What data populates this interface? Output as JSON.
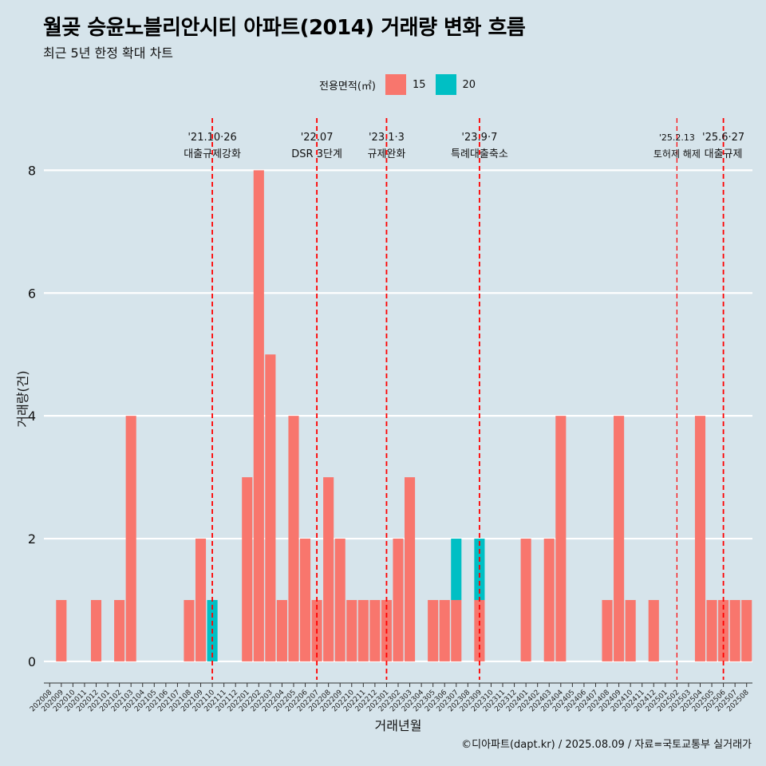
{
  "title": "월곶 승윤노블리안시티 아파트(2014) 거래량 변화 흐름",
  "subtitle": "최근 5년 한정 확대 차트",
  "caption": "©디아파트(dapt.kr) / 2025.08.09 / 자료=국토교통부 실거래가",
  "legend": {
    "title": "전용면적(㎡)",
    "items": [
      {
        "label": "15",
        "color": "#f8766d"
      },
      {
        "label": "20",
        "color": "#00bfc4"
      }
    ]
  },
  "chart_data": {
    "type": "bar",
    "xlabel": "거래년월",
    "ylabel": "거래량(건)",
    "ylim": [
      -0.3,
      8.85
    ],
    "yticks": [
      0,
      2,
      4,
      6,
      8
    ],
    "grid": "horizontal",
    "categories": [
      "202008",
      "202009",
      "202010",
      "202011",
      "202012",
      "202101",
      "202102",
      "202103",
      "202104",
      "202105",
      "202106",
      "202107",
      "202108",
      "202109",
      "202110",
      "202111",
      "202112",
      "202201",
      "202202",
      "202203",
      "202204",
      "202205",
      "202206",
      "202207",
      "202208",
      "202209",
      "202210",
      "202211",
      "202212",
      "202301",
      "202302",
      "202303",
      "202304",
      "202305",
      "202306",
      "202307",
      "202308",
      "202309",
      "202310",
      "202311",
      "202312",
      "202401",
      "202402",
      "202403",
      "202404",
      "202405",
      "202406",
      "202407",
      "202408",
      "202409",
      "202410",
      "202411",
      "202412",
      "202501",
      "202502",
      "202503",
      "202504",
      "202505",
      "202506",
      "202507",
      "202508"
    ],
    "series": [
      {
        "name": "15",
        "color": "#f8766d",
        "values": [
          0,
          1,
          0,
          0,
          1,
          0,
          1,
          4,
          0,
          0,
          0,
          0,
          1,
          2,
          0,
          0,
          0,
          3,
          8,
          5,
          1,
          4,
          2,
          1,
          3,
          2,
          1,
          1,
          1,
          1,
          2,
          3,
          0,
          1,
          1,
          1,
          0,
          1,
          0,
          0,
          0,
          2,
          0,
          2,
          4,
          0,
          0,
          0,
          1,
          4,
          1,
          0,
          1,
          0,
          0,
          0,
          4,
          1,
          1,
          1,
          1
        ]
      },
      {
        "name": "20",
        "color": "#00bfc4",
        "values": [
          0,
          0,
          0,
          0,
          0,
          0,
          0,
          0,
          0,
          0,
          0,
          0,
          0,
          0,
          1,
          0,
          0,
          0,
          0,
          0,
          0,
          0,
          0,
          0,
          0,
          0,
          0,
          0,
          0,
          0,
          0,
          0,
          0,
          0,
          0,
          1,
          0,
          1,
          0,
          0,
          0,
          0,
          0,
          0,
          0,
          0,
          0,
          0,
          0,
          0,
          0,
          0,
          0,
          0,
          0,
          0,
          0,
          0,
          0,
          0,
          0
        ]
      }
    ],
    "annotations": [
      {
        "date": "'21.10·26",
        "label": "대출규제강화",
        "x": "202110",
        "style": "dashed"
      },
      {
        "date": "'22.07",
        "label": "DSR 3단계",
        "x": "202207",
        "style": "dashed"
      },
      {
        "date": "'23.1·3",
        "label": "규제완화",
        "x": "202301",
        "style": "dashed"
      },
      {
        "date": "'23.9·7",
        "label": "특례대출축소",
        "x": "202309",
        "style": "dashed"
      },
      {
        "date": "'25.2.13",
        "label": "토허제 해제",
        "x": "202502",
        "style": "thin"
      },
      {
        "date": "'25.6·27",
        "label": "대출규제",
        "x": "202506",
        "style": "dashed"
      }
    ]
  }
}
